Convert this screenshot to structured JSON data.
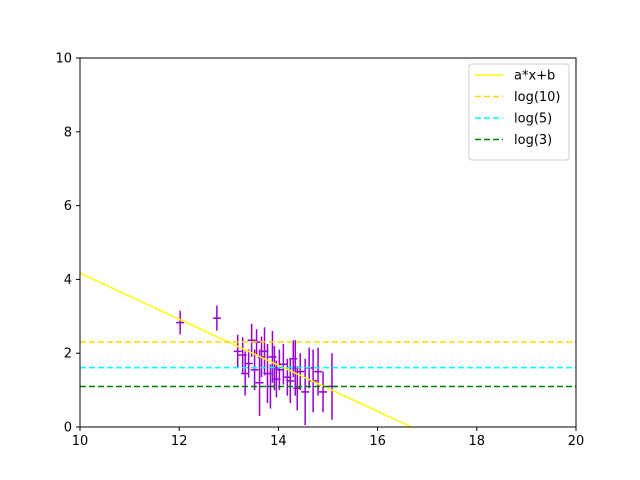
{
  "chart_data": {
    "type": "scatter",
    "title": "",
    "xlabel": "",
    "ylabel": "",
    "xlim": [
      10,
      20
    ],
    "ylim": [
      0,
      10
    ],
    "xticks": [
      "10",
      "12",
      "14",
      "16",
      "18",
      "20"
    ],
    "yticks": [
      "0",
      "2",
      "4",
      "6",
      "8",
      "10"
    ],
    "grid": false,
    "legend_position": "top-right",
    "series": [
      {
        "name": "a*x+b",
        "kind": "line",
        "color": "#ffff00",
        "style": "solid",
        "points": [
          [
            10.0,
            4.17
          ],
          [
            16.68,
            0.0
          ]
        ]
      },
      {
        "name": "log(10)",
        "kind": "hline",
        "color": "#ffd700",
        "style": "dashed",
        "y": 2.303
      },
      {
        "name": "log(5)",
        "kind": "hline",
        "color": "#00ffff",
        "style": "dashed",
        "y": 1.609
      },
      {
        "name": "log(3)",
        "kind": "hline",
        "color": "#008000",
        "style": "dashed",
        "y": 1.099
      },
      {
        "kind": "errorbar",
        "color": "#9400d3",
        "points": [
          {
            "x": 12.02,
            "y": 2.83,
            "err": 0.32
          },
          {
            "x": 12.76,
            "y": 2.95,
            "err": 0.34
          },
          {
            "x": 13.18,
            "y": 2.05,
            "err": 0.45
          },
          {
            "x": 13.28,
            "y": 1.95,
            "err": 0.48
          },
          {
            "x": 13.33,
            "y": 1.45,
            "err": 0.6
          },
          {
            "x": 13.4,
            "y": 1.72,
            "err": 0.38
          },
          {
            "x": 13.46,
            "y": 2.35,
            "err": 0.45
          },
          {
            "x": 13.52,
            "y": 1.55,
            "err": 0.55
          },
          {
            "x": 13.56,
            "y": 2.3,
            "err": 0.35
          },
          {
            "x": 13.62,
            "y": 1.2,
            "err": 0.9
          },
          {
            "x": 13.66,
            "y": 1.9,
            "err": 0.55
          },
          {
            "x": 13.72,
            "y": 2.05,
            "err": 0.65
          },
          {
            "x": 13.78,
            "y": 1.45,
            "err": 0.8
          },
          {
            "x": 13.84,
            "y": 1.1,
            "err": 0.6
          },
          {
            "x": 13.88,
            "y": 1.9,
            "err": 0.7
          },
          {
            "x": 13.92,
            "y": 1.6,
            "err": 0.6
          },
          {
            "x": 13.96,
            "y": 1.3,
            "err": 0.5
          },
          {
            "x": 14.02,
            "y": 1.55,
            "err": 0.55
          },
          {
            "x": 14.1,
            "y": 1.7,
            "err": 0.55
          },
          {
            "x": 14.18,
            "y": 1.35,
            "err": 0.5
          },
          {
            "x": 14.24,
            "y": 1.25,
            "err": 0.6
          },
          {
            "x": 14.3,
            "y": 1.85,
            "err": 0.5
          },
          {
            "x": 14.34,
            "y": 1.6,
            "err": 0.75
          },
          {
            "x": 14.38,
            "y": 1.05,
            "err": 0.6
          },
          {
            "x": 14.44,
            "y": 1.5,
            "err": 0.5
          },
          {
            "x": 14.54,
            "y": 0.95,
            "err": 0.9
          },
          {
            "x": 14.62,
            "y": 1.6,
            "err": 0.55
          },
          {
            "x": 14.7,
            "y": 1.25,
            "err": 0.85
          },
          {
            "x": 14.8,
            "y": 1.5,
            "err": 0.65
          },
          {
            "x": 14.9,
            "y": 0.95,
            "err": 0.55
          },
          {
            "x": 15.08,
            "y": 1.1,
            "err": 0.9
          }
        ]
      }
    ]
  }
}
